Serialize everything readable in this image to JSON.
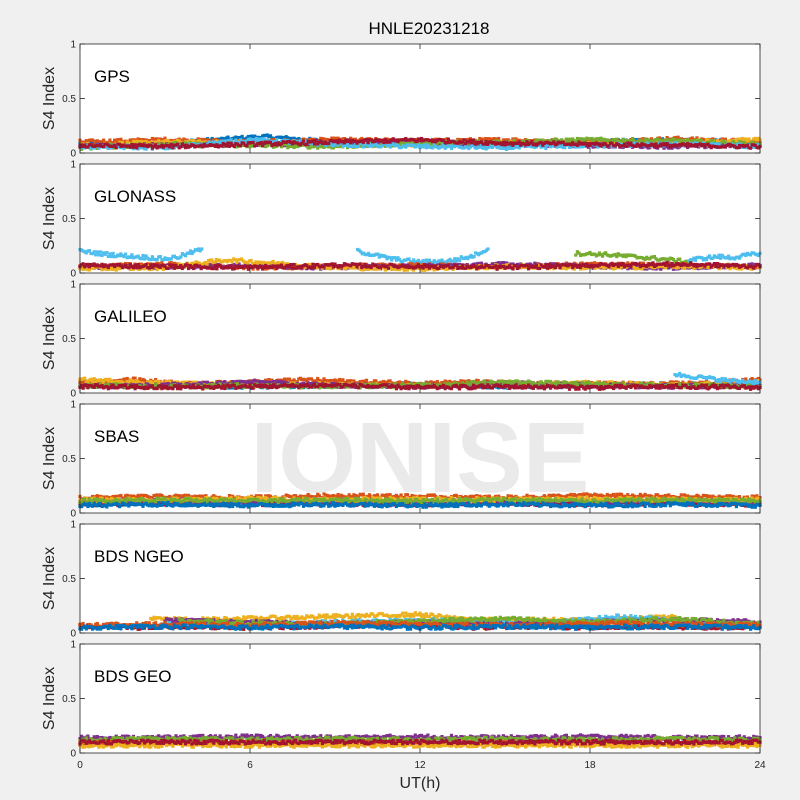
{
  "figure": {
    "title": "HNLE20231218",
    "watermark": "IONISE",
    "xlabel": "UT(h)",
    "ylabel": "S4 Index"
  },
  "colors": {
    "background": "#f0f0f0",
    "axes_bg": "#ffffff",
    "series": [
      "#0072bd",
      "#d95319",
      "#edb120",
      "#7e2f8e",
      "#77ac30",
      "#4dbeee",
      "#a2142f"
    ]
  },
  "chart_data": [
    {
      "type": "scatter",
      "panel_label": "GPS",
      "xlim": [
        0,
        24
      ],
      "ylim": [
        0,
        1
      ],
      "xticks": [
        0,
        6,
        12,
        18,
        24
      ],
      "xtick_labels": [
        "0",
        "6",
        "12",
        "18",
        "24"
      ],
      "yticks": [
        0,
        0.5,
        1
      ],
      "ytick_labels": [
        "0",
        "0.5",
        "1"
      ],
      "grid": false,
      "series": [
        {
          "color": "#0072bd",
          "x": [
            0,
            3,
            6.5,
            9,
            12,
            15,
            18,
            21,
            24
          ],
          "y": [
            0.08,
            0.09,
            0.15,
            0.1,
            0.08,
            0.09,
            0.1,
            0.12,
            0.09
          ]
        },
        {
          "color": "#d95319",
          "x": [
            0,
            3,
            6,
            9,
            12,
            15,
            18,
            21,
            24
          ],
          "y": [
            0.1,
            0.12,
            0.1,
            0.12,
            0.11,
            0.12,
            0.1,
            0.13,
            0.1
          ]
        },
        {
          "color": "#edb120",
          "x": [
            0,
            3,
            6,
            9,
            12,
            15,
            18,
            21,
            24
          ],
          "y": [
            0.07,
            0.1,
            0.09,
            0.08,
            0.07,
            0.09,
            0.08,
            0.1,
            0.12
          ]
        },
        {
          "color": "#7e2f8e",
          "x": [
            0,
            3,
            6,
            9,
            12,
            15,
            18,
            21,
            24
          ],
          "y": [
            0.06,
            0.07,
            0.08,
            0.09,
            0.1,
            0.08,
            0.07,
            0.06,
            0.07
          ]
        },
        {
          "color": "#77ac30",
          "x": [
            0,
            3,
            6,
            9,
            12,
            15,
            18,
            21,
            24
          ],
          "y": [
            0.05,
            0.08,
            0.07,
            0.06,
            0.09,
            0.1,
            0.12,
            0.11,
            0.08
          ]
        },
        {
          "color": "#4dbeee",
          "x": [
            0,
            3,
            6,
            9,
            12,
            15,
            18,
            21,
            24
          ],
          "y": [
            0.06,
            0.05,
            0.12,
            0.08,
            0.06,
            0.05,
            0.07,
            0.08,
            0.06
          ]
        },
        {
          "color": "#a2142f",
          "x": [
            0,
            3,
            6,
            9,
            12,
            15,
            18,
            21,
            24
          ],
          "y": [
            0.07,
            0.06,
            0.08,
            0.1,
            0.12,
            0.09,
            0.08,
            0.07,
            0.06
          ]
        }
      ]
    },
    {
      "type": "scatter",
      "panel_label": "GLONASS",
      "xlim": [
        0,
        24
      ],
      "ylim": [
        0,
        1
      ],
      "xticks": [
        0,
        6,
        12,
        18,
        24
      ],
      "xtick_labels": [
        "0",
        "6",
        "12",
        "18",
        "24"
      ],
      "yticks": [
        0,
        0.5,
        1
      ],
      "ytick_labels": [
        "0",
        "0.5",
        "1"
      ],
      "grid": false,
      "series": [
        {
          "color": "#4dbeee",
          "x": [
            0,
            1,
            2,
            3,
            3.5,
            4.3
          ],
          "y": [
            0.2,
            0.17,
            0.15,
            0.13,
            0.15,
            0.22
          ]
        },
        {
          "color": "#4dbeee",
          "x": [
            9.8,
            11,
            12,
            13,
            13.8,
            14.4
          ],
          "y": [
            0.2,
            0.13,
            0.1,
            0.11,
            0.15,
            0.22
          ]
        },
        {
          "color": "#77ac30",
          "x": [
            17.5,
            18.5,
            19.5,
            20.5,
            21.5
          ],
          "y": [
            0.18,
            0.17,
            0.15,
            0.13,
            0.1
          ]
        },
        {
          "color": "#4dbeee",
          "x": [
            21.5,
            22.5,
            23,
            24
          ],
          "y": [
            0.12,
            0.15,
            0.14,
            0.18
          ]
        },
        {
          "color": "#d95319",
          "x": [
            0,
            3,
            6,
            9,
            12,
            15,
            18,
            21,
            24
          ],
          "y": [
            0.06,
            0.08,
            0.05,
            0.06,
            0.07,
            0.06,
            0.08,
            0.07,
            0.06
          ]
        },
        {
          "color": "#7e2f8e",
          "x": [
            0,
            3,
            6,
            9,
            12,
            15,
            18,
            21,
            24
          ],
          "y": [
            0.05,
            0.06,
            0.07,
            0.05,
            0.06,
            0.08,
            0.06,
            0.05,
            0.07
          ]
        },
        {
          "color": "#edb120",
          "x": [
            0,
            3,
            5.2,
            9,
            12,
            15,
            18,
            21,
            24
          ],
          "y": [
            0.04,
            0.05,
            0.12,
            0.05,
            0.04,
            0.06,
            0.05,
            0.06,
            0.05
          ]
        },
        {
          "color": "#a2142f",
          "x": [
            0,
            3,
            6,
            9,
            12,
            15,
            18,
            21,
            24
          ],
          "y": [
            0.07,
            0.06,
            0.05,
            0.07,
            0.06,
            0.05,
            0.07,
            0.08,
            0.06
          ]
        }
      ]
    },
    {
      "type": "scatter",
      "panel_label": "GALILEO",
      "xlim": [
        0,
        24
      ],
      "ylim": [
        0,
        1
      ],
      "xticks": [
        0,
        6,
        12,
        18,
        24
      ],
      "xtick_labels": [
        "0",
        "6",
        "12",
        "18",
        "24"
      ],
      "yticks": [
        0,
        0.5,
        1
      ],
      "ytick_labels": [
        "0",
        "0.5",
        "1"
      ],
      "grid": false,
      "series": [
        {
          "color": "#0072bd",
          "x": [
            0,
            3,
            6,
            9,
            12,
            15,
            18,
            21,
            24
          ],
          "y": [
            0.08,
            0.07,
            0.06,
            0.07,
            0.08,
            0.06,
            0.07,
            0.08,
            0.07
          ]
        },
        {
          "color": "#d95319",
          "x": [
            0,
            2,
            4,
            6,
            8,
            10,
            12,
            14,
            16,
            18,
            20,
            22,
            24
          ],
          "y": [
            0.1,
            0.12,
            0.08,
            0.1,
            0.12,
            0.1,
            0.09,
            0.1,
            0.08,
            0.09,
            0.08,
            0.09,
            0.12
          ]
        },
        {
          "color": "#edb120",
          "x": [
            0,
            3,
            6,
            9,
            12,
            15,
            18,
            21,
            24
          ],
          "y": [
            0.12,
            0.09,
            0.07,
            0.08,
            0.06,
            0.07,
            0.09,
            0.07,
            0.1
          ]
        },
        {
          "color": "#7e2f8e",
          "x": [
            0,
            3,
            6,
            9,
            12,
            15,
            18,
            21,
            24
          ],
          "y": [
            0.06,
            0.07,
            0.1,
            0.07,
            0.06,
            0.09,
            0.07,
            0.06,
            0.07
          ]
        },
        {
          "color": "#77ac30",
          "x": [
            0,
            3,
            6,
            9,
            12,
            15,
            18,
            21,
            24
          ],
          "y": [
            0.07,
            0.06,
            0.07,
            0.06,
            0.07,
            0.1,
            0.08,
            0.07,
            0.06
          ]
        },
        {
          "color": "#4dbeee",
          "x": [
            21,
            22,
            23,
            24
          ],
          "y": [
            0.17,
            0.14,
            0.11,
            0.1
          ]
        },
        {
          "color": "#a2142f",
          "x": [
            0,
            3,
            6,
            9,
            12,
            15,
            18,
            21,
            24
          ],
          "y": [
            0.06,
            0.05,
            0.06,
            0.07,
            0.05,
            0.06,
            0.05,
            0.06,
            0.05
          ]
        }
      ]
    },
    {
      "type": "scatter",
      "panel_label": "SBAS",
      "xlim": [
        0,
        24
      ],
      "ylim": [
        0,
        1
      ],
      "xticks": [
        0,
        6,
        12,
        18,
        24
      ],
      "xtick_labels": [
        "0",
        "6",
        "12",
        "18",
        "24"
      ],
      "yticks": [
        0,
        0.5,
        1
      ],
      "ytick_labels": [
        "0",
        "0.5",
        "1"
      ],
      "grid": false,
      "series": [
        {
          "color": "#d95319",
          "x": [
            0,
            3,
            6,
            9,
            12,
            15,
            18,
            21,
            24
          ],
          "y": [
            0.14,
            0.15,
            0.14,
            0.16,
            0.15,
            0.14,
            0.16,
            0.15,
            0.14
          ]
        },
        {
          "color": "#a2142f",
          "x": [
            0,
            3,
            6,
            9,
            12,
            15,
            18,
            21,
            24
          ],
          "y": [
            0.08,
            0.09,
            0.08,
            0.09,
            0.08,
            0.09,
            0.08,
            0.09,
            0.08
          ]
        },
        {
          "color": "#7e2f8e",
          "x": [
            0,
            3,
            6,
            9,
            12,
            15,
            18,
            21,
            24
          ],
          "y": [
            0.1,
            0.11,
            0.1,
            0.11,
            0.1,
            0.11,
            0.1,
            0.11,
            0.1
          ]
        },
        {
          "color": "#edb120",
          "x": [
            0,
            3,
            6,
            9,
            12,
            15,
            18,
            21,
            24
          ],
          "y": [
            0.12,
            0.12,
            0.13,
            0.12,
            0.13,
            0.12,
            0.13,
            0.12,
            0.12
          ]
        },
        {
          "color": "#77ac30",
          "x": [
            0,
            3,
            6,
            9,
            12,
            15,
            18,
            21,
            24
          ],
          "y": [
            0.11,
            0.12,
            0.11,
            0.12,
            0.11,
            0.12,
            0.11,
            0.12,
            0.11
          ]
        },
        {
          "color": "#0072bd",
          "x": [
            0,
            3,
            6,
            9,
            12,
            15,
            18,
            21,
            24
          ],
          "y": [
            0.07,
            0.08,
            0.07,
            0.08,
            0.07,
            0.08,
            0.07,
            0.08,
            0.07
          ]
        }
      ]
    },
    {
      "type": "scatter",
      "panel_label": "BDS NGEO",
      "xlim": [
        0,
        24
      ],
      "ylim": [
        0,
        1
      ],
      "xticks": [
        0,
        6,
        12,
        18,
        24
      ],
      "xtick_labels": [
        "0",
        "6",
        "12",
        "18",
        "24"
      ],
      "yticks": [
        0,
        0.5,
        1
      ],
      "ytick_labels": [
        "0",
        "0.5",
        "1"
      ],
      "grid": false,
      "series": [
        {
          "color": "#a2142f",
          "x": [
            0,
            2,
            4,
            6,
            8,
            10,
            12,
            14,
            16,
            18,
            20,
            22,
            24
          ],
          "y": [
            0.06,
            0.05,
            0.06,
            0.05,
            0.06,
            0.07,
            0.06,
            0.05,
            0.06,
            0.05,
            0.06,
            0.05,
            0.06
          ]
        },
        {
          "color": "#edb120",
          "x": [
            2.5,
            4,
            5.5,
            12,
            13,
            14,
            18,
            19.5,
            21
          ],
          "y": [
            0.13,
            0.12,
            0.13,
            0.17,
            0.14,
            0.12,
            0.12,
            0.13,
            0.15
          ]
        },
        {
          "color": "#4dbeee",
          "x": [
            3,
            6,
            9,
            12,
            14,
            16,
            19,
            21,
            24
          ],
          "y": [
            0.1,
            0.08,
            0.1,
            0.12,
            0.1,
            0.08,
            0.15,
            0.12,
            0.08
          ]
        },
        {
          "color": "#7e2f8e",
          "x": [
            3,
            6,
            9,
            12,
            15,
            18,
            21,
            24
          ],
          "y": [
            0.12,
            0.1,
            0.08,
            0.1,
            0.08,
            0.1,
            0.12,
            0.1
          ]
        },
        {
          "color": "#77ac30",
          "x": [
            3.5,
            6,
            9,
            12,
            15,
            18,
            21,
            24
          ],
          "y": [
            0.11,
            0.09,
            0.08,
            0.11,
            0.13,
            0.1,
            0.13,
            0.08
          ]
        },
        {
          "color": "#d95319",
          "x": [
            0,
            3,
            6,
            9,
            12,
            15,
            18,
            21,
            24
          ],
          "y": [
            0.07,
            0.08,
            0.07,
            0.09,
            0.08,
            0.07,
            0.09,
            0.08,
            0.07
          ]
        },
        {
          "color": "#0072bd",
          "x": [
            0,
            3,
            6,
            9,
            12,
            15,
            18,
            21,
            24
          ],
          "y": [
            0.05,
            0.06,
            0.05,
            0.06,
            0.05,
            0.06,
            0.05,
            0.06,
            0.05
          ]
        }
      ]
    },
    {
      "type": "scatter",
      "panel_label": "BDS GEO",
      "xlim": [
        0,
        24
      ],
      "ylim": [
        0,
        1
      ],
      "xticks": [
        0,
        6,
        12,
        18,
        24
      ],
      "xtick_labels": [
        "0",
        "6",
        "12",
        "18",
        "24"
      ],
      "yticks": [
        0,
        0.5,
        1
      ],
      "ytick_labels": [
        "0",
        "0.5",
        "1"
      ],
      "grid": false,
      "series": [
        {
          "color": "#7e2f8e",
          "x": [
            0,
            3,
            6,
            9,
            12,
            15,
            18,
            21,
            24
          ],
          "y": [
            0.14,
            0.14,
            0.15,
            0.14,
            0.15,
            0.14,
            0.15,
            0.14,
            0.14
          ]
        },
        {
          "color": "#77ac30",
          "x": [
            0,
            3,
            6,
            9,
            12,
            15,
            18,
            21,
            24
          ],
          "y": [
            0.12,
            0.13,
            0.12,
            0.13,
            0.12,
            0.13,
            0.12,
            0.13,
            0.12
          ]
        },
        {
          "color": "#d95319",
          "x": [
            0,
            3,
            6,
            9,
            12,
            15,
            18,
            21,
            24
          ],
          "y": [
            0.09,
            0.09,
            0.09,
            0.09,
            0.09,
            0.09,
            0.09,
            0.09,
            0.09
          ]
        },
        {
          "color": "#edb120",
          "x": [
            0,
            3,
            6,
            9,
            12,
            15,
            18,
            21,
            24
          ],
          "y": [
            0.07,
            0.07,
            0.07,
            0.07,
            0.07,
            0.07,
            0.07,
            0.07,
            0.07
          ]
        },
        {
          "color": "#a2142f",
          "x": [
            0,
            3,
            6,
            9,
            12,
            15,
            18,
            21,
            24
          ],
          "y": [
            0.1,
            0.1,
            0.1,
            0.1,
            0.1,
            0.1,
            0.1,
            0.1,
            0.1
          ]
        }
      ]
    }
  ]
}
